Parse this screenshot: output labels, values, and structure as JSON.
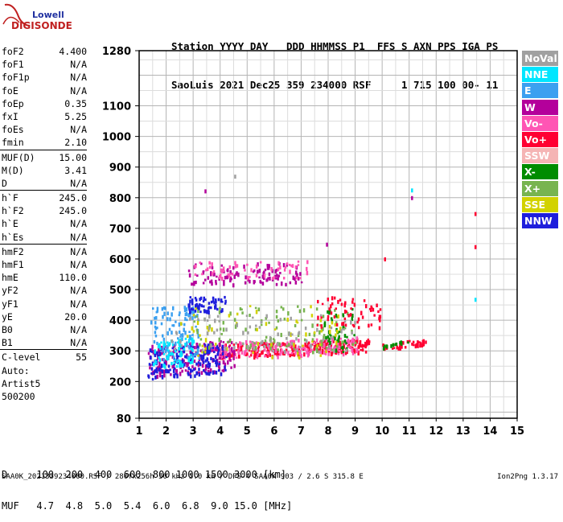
{
  "logo": {
    "line1": "Lowell",
    "line2": "DIGISONDE"
  },
  "header": {
    "line1": "Station YYYY DAY   DDD HHMMSS P1  FFS S AXN PPS IGA PS",
    "line2": "SaoLuis 2021 Dec25 359 234000 RSF     1 715 100 00- 11"
  },
  "params_group1": [
    {
      "label": "foF2",
      "value": "4.400"
    },
    {
      "label": "foF1",
      "value": "N/A"
    },
    {
      "label": "foF1p",
      "value": "N/A"
    },
    {
      "label": "foE",
      "value": "N/A"
    },
    {
      "label": "foEp",
      "value": "0.35"
    },
    {
      "label": "fxI",
      "value": "5.25"
    },
    {
      "label": "foEs",
      "value": "N/A"
    },
    {
      "label": "fmin",
      "value": "2.10"
    }
  ],
  "params_group2": [
    {
      "label": "MUF(D)",
      "value": "15.00"
    },
    {
      "label": "M(D)",
      "value": "3.41"
    },
    {
      "label": "D",
      "value": "N/A"
    }
  ],
  "params_group3": [
    {
      "label": "h`F",
      "value": "245.0"
    },
    {
      "label": "h`F2",
      "value": "245.0"
    },
    {
      "label": "h`E",
      "value": "N/A"
    },
    {
      "label": "h`Es",
      "value": "N/A"
    }
  ],
  "params_group4": [
    {
      "label": "hmF2",
      "value": "N/A"
    },
    {
      "label": "hmF1",
      "value": "N/A"
    },
    {
      "label": "hmE",
      "value": "110.0"
    },
    {
      "label": "yF2",
      "value": "N/A"
    },
    {
      "label": "yF1",
      "value": "N/A"
    },
    {
      "label": "yE",
      "value": "20.0"
    },
    {
      "label": "B0",
      "value": "N/A"
    },
    {
      "label": "B1",
      "value": "N/A"
    }
  ],
  "params_group5": [
    {
      "label": "C-level",
      "value": "55"
    }
  ],
  "params_group6": [
    {
      "label": "Auto:",
      "value": ""
    },
    {
      "label": "Artist5",
      "value": ""
    },
    {
      "label": "500200",
      "value": ""
    }
  ],
  "legend": [
    {
      "label": "NoVal",
      "color": "#a0a0a0"
    },
    {
      "label": "NNE",
      "color": "#00e6ff"
    },
    {
      "label": "E",
      "color": "#3ca0f0"
    },
    {
      "label": "W",
      "color": "#b4009b"
    },
    {
      "label": "Vo-",
      "color": "#ff55b4"
    },
    {
      "label": "Vo+",
      "color": "#ff0032"
    },
    {
      "label": "SSW",
      "color": "#f5b4b4"
    },
    {
      "label": "X-",
      "color": "#008c00"
    },
    {
      "label": "X+",
      "color": "#78b450"
    },
    {
      "label": "SSE",
      "color": "#d2d200"
    },
    {
      "label": "NNW",
      "color": "#1e1edc"
    }
  ],
  "muf_table": {
    "line1": "D     100  200  400  600  800 1000 1500 3000 [km]",
    "line2": "MUF   4.7  4.8  5.0  5.4  6.0  6.8  9.0 15.0 [MHz]"
  },
  "footer": "SAA0K_2021359234000.RSF / 280fx256h 50 kHz 5.0 km / DPS-4 SAA0K 903 / 2.6 S 315.8 E",
  "version": "Ion2Png 1.3.17",
  "chart_data": {
    "type": "scatter",
    "xlim": [
      1,
      15
    ],
    "ylim": [
      80,
      1280
    ],
    "x_ticks": [
      1,
      2,
      3,
      4,
      5,
      6,
      7,
      8,
      9,
      10,
      11,
      12,
      13,
      14,
      15
    ],
    "y_ticks": [
      80,
      200,
      300,
      400,
      500,
      600,
      700,
      800,
      900,
      1000,
      1100,
      1280
    ],
    "x_minor_step": 0.5,
    "y_minor_step": 50,
    "grid": true,
    "legend_position": "right",
    "traces": [
      {
        "color": "#ff0032",
        "x_range": [
          4.0,
          9.5
        ],
        "y_range": [
          290,
          335
        ],
        "density": 260
      },
      {
        "color": "#ff55b4",
        "x_range": [
          3.5,
          9.2
        ],
        "y_range": [
          285,
          340
        ],
        "density": 160
      },
      {
        "color": "#b4009b",
        "x_range": [
          1.3,
          4.5
        ],
        "y_range": [
          230,
          330
        ],
        "density": 190
      },
      {
        "color": "#1e1edc",
        "x_range": [
          1.3,
          4.2
        ],
        "y_range": [
          220,
          320
        ],
        "density": 150
      },
      {
        "color": "#3ca0f0",
        "x_range": [
          1.4,
          3.2
        ],
        "y_range": [
          260,
          450
        ],
        "density": 110
      },
      {
        "color": "#00e6ff",
        "x_range": [
          1.5,
          3.0
        ],
        "y_range": [
          250,
          340
        ],
        "density": 70
      },
      {
        "color": "#78b450",
        "x_range": [
          3.0,
          9.0
        ],
        "y_range": [
          300,
          450
        ],
        "density": 110
      },
      {
        "color": "#008c00",
        "x_range": [
          7.8,
          9.0
        ],
        "y_range": [
          300,
          440
        ],
        "density": 45
      },
      {
        "color": "#d2d200",
        "x_range": [
          2.5,
          8.5
        ],
        "y_range": [
          280,
          450
        ],
        "density": 60
      },
      {
        "color": "#a0a0a0",
        "x_range": [
          2.0,
          9.0
        ],
        "y_range": [
          300,
          420
        ],
        "density": 80
      },
      {
        "color": "#b4009b",
        "x_range": [
          2.8,
          7.0
        ],
        "y_range": [
          520,
          590
        ],
        "density": 110
      },
      {
        "color": "#ff55b4",
        "x_range": [
          3.0,
          7.2
        ],
        "y_range": [
          540,
          600
        ],
        "density": 60
      },
      {
        "color": "#1e1edc",
        "x_range": [
          2.8,
          4.2
        ],
        "y_range": [
          430,
          480
        ],
        "density": 60
      },
      {
        "color": "#ff0032",
        "x_range": [
          7.5,
          10.0
        ],
        "y_range": [
          380,
          480
        ],
        "density": 60
      },
      {
        "color": "#ff0032",
        "x_range": [
          10.0,
          11.6
        ],
        "y_range": [
          315,
          335
        ],
        "density": 40
      },
      {
        "color": "#008c00",
        "x_range": [
          10.0,
          11.0
        ],
        "y_range": [
          318,
          332
        ],
        "density": 12
      }
    ],
    "isolated_points": [
      {
        "x": 13.45,
        "y": 748,
        "color": "#ff0032"
      },
      {
        "x": 13.45,
        "y": 640,
        "color": "#ff0032"
      },
      {
        "x": 13.45,
        "y": 468,
        "color": "#00e6ff"
      },
      {
        "x": 11.1,
        "y": 825,
        "color": "#00e6ff"
      },
      {
        "x": 11.1,
        "y": 800,
        "color": "#b4009b"
      },
      {
        "x": 3.45,
        "y": 822,
        "color": "#b4009b"
      },
      {
        "x": 10.1,
        "y": 600,
        "color": "#ff0032"
      },
      {
        "x": 7.95,
        "y": 648,
        "color": "#b4009b"
      },
      {
        "x": 4.55,
        "y": 870,
        "color": "#a0a0a0"
      }
    ]
  }
}
